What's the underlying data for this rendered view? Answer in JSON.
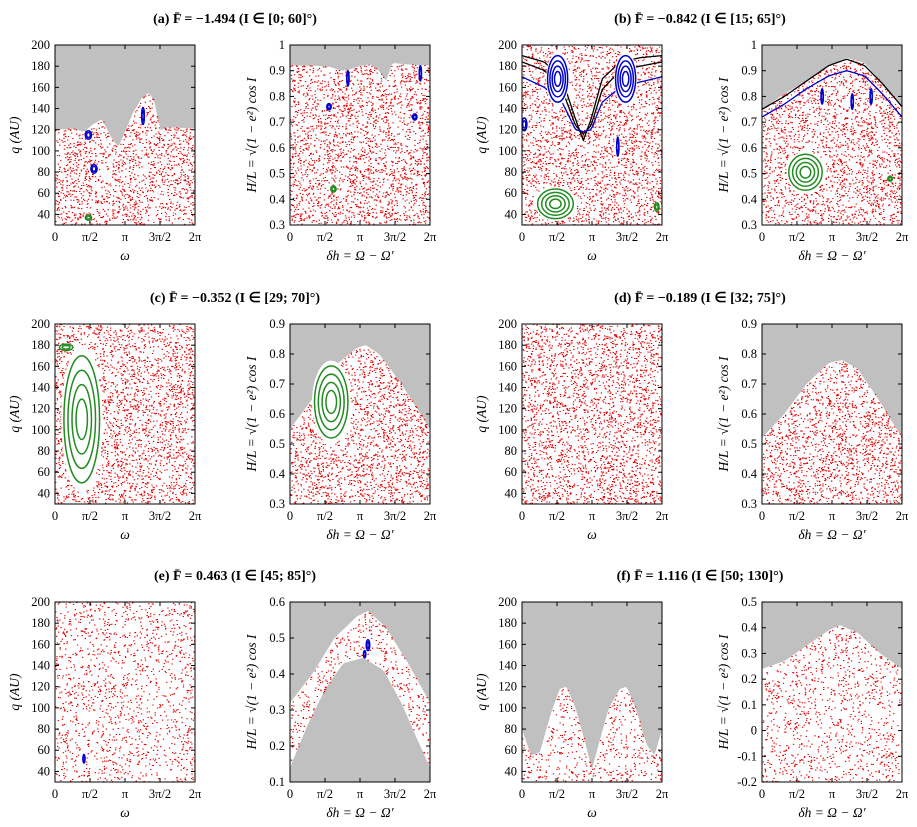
{
  "figure": {
    "xtick_labels": [
      "0",
      "π/2",
      "π",
      "3π/2",
      "2π"
    ],
    "xlabel_left": "ω",
    "xlabel_right": "δh = Ω − Ω′",
    "ylabel_left": "q (AU)",
    "ylabel_right": "H/L = √(1 − e²) cos I"
  },
  "chart_data": [
    {
      "panel": "a",
      "title": "(a)  F̄ = −1.494  (I ∈ [0; 60]°)",
      "left": {
        "type": "scatter",
        "xlim": [
          0,
          6.283
        ],
        "ylim": [
          30,
          200
        ],
        "yticks": [
          40,
          60,
          80,
          100,
          120,
          140,
          160,
          180,
          200
        ],
        "forbidden_region_color": "#c0c0c0",
        "boundary": [
          [
            0,
            120
          ],
          [
            0.8,
            121
          ],
          [
            1.3,
            118
          ],
          [
            1.7,
            125
          ],
          [
            2.1,
            130
          ],
          [
            2.4,
            118
          ],
          [
            2.6,
            110
          ],
          [
            2.85,
            104
          ],
          [
            3.1,
            116
          ],
          [
            3.5,
            136
          ],
          [
            3.9,
            150
          ],
          [
            4.2,
            155
          ],
          [
            4.45,
            148
          ],
          [
            4.6,
            132
          ],
          [
            4.75,
            119
          ],
          [
            4.9,
            122
          ],
          [
            5.4,
            122
          ],
          [
            6.283,
            121
          ]
        ],
        "islands": [
          {
            "color": "#0000cc",
            "x": 1.5,
            "y": 115,
            "rx": 0.14,
            "ry": 4
          },
          {
            "color": "#0000cc",
            "x": 1.75,
            "y": 83,
            "rx": 0.14,
            "ry": 4
          },
          {
            "color": "#0000cc",
            "x": 3.95,
            "y": 133,
            "rx": 0.06,
            "ry": 8
          },
          {
            "color": "#228b22",
            "x": 1.5,
            "y": 37,
            "rx": 0.14,
            "ry": 2.5
          }
        ]
      },
      "right": {
        "type": "scatter",
        "xlim": [
          0,
          6.283
        ],
        "ylim": [
          0.3,
          1.0
        ],
        "yticks": [
          0.3,
          0.4,
          0.5,
          0.6,
          0.7,
          0.8,
          0.9,
          1
        ],
        "boundary": [
          [
            0,
            0.92
          ],
          [
            1,
            0.92
          ],
          [
            1.8,
            0.915
          ],
          [
            2.3,
            0.9
          ],
          [
            2.7,
            0.905
          ],
          [
            3.2,
            0.92
          ],
          [
            3.6,
            0.925
          ],
          [
            4.0,
            0.9
          ],
          [
            4.3,
            0.86
          ],
          [
            4.6,
            0.93
          ],
          [
            5.2,
            0.925
          ],
          [
            6.283,
            0.92
          ]
        ],
        "islands": [
          {
            "color": "#0000cc",
            "x": 2.6,
            "y": 0.87,
            "rx": 0.05,
            "ry": 0.03
          },
          {
            "color": "#0000cc",
            "x": 5.85,
            "y": 0.89,
            "rx": 0.05,
            "ry": 0.03
          },
          {
            "color": "#0000cc",
            "x": 1.75,
            "y": 0.76,
            "rx": 0.1,
            "ry": 0.012
          },
          {
            "color": "#0000cc",
            "x": 5.6,
            "y": 0.72,
            "rx": 0.1,
            "ry": 0.012
          },
          {
            "color": "#228b22",
            "x": 1.95,
            "y": 0.44,
            "rx": 0.12,
            "ry": 0.012
          }
        ]
      }
    },
    {
      "panel": "b",
      "title": "(b)  F̄ = −0.842  (I ∈ [15; 65]°)",
      "left": {
        "type": "scatter",
        "xlim": [
          0,
          6.283
        ],
        "ylim": [
          30,
          200
        ],
        "yticks": [
          40,
          60,
          80,
          100,
          120,
          140,
          160,
          180,
          200
        ],
        "boundary": [
          [
            0,
            200
          ],
          [
            6.283,
            200
          ]
        ],
        "regular_curves": [
          {
            "color": "#000000",
            "points": [
              [
                0,
                190
              ],
              [
                1,
                184
              ],
              [
                1.8,
                168
              ],
              [
                2.4,
                130
              ],
              [
                2.75,
                110
              ],
              [
                3.1,
                130
              ],
              [
                3.6,
                168
              ],
              [
                4.4,
                184
              ],
              [
                5.3,
                188
              ],
              [
                6.283,
                190
              ]
            ]
          },
          {
            "color": "#000000",
            "points": [
              [
                0,
                184
              ],
              [
                1,
                176
              ],
              [
                1.8,
                158
              ],
              [
                2.4,
                124
              ],
              [
                2.75,
                116
              ],
              [
                3.1,
                124
              ],
              [
                3.6,
                158
              ],
              [
                4.4,
                176
              ],
              [
                5.3,
                180
              ],
              [
                6.283,
                184
              ]
            ]
          },
          {
            "color": "#0000cc",
            "points": [
              [
                0,
                170
              ],
              [
                1,
                160
              ],
              [
                1.8,
                146
              ],
              [
                2.4,
                120
              ],
              [
                2.75,
                118
              ],
              [
                3.1,
                120
              ],
              [
                3.6,
                146
              ],
              [
                4.4,
                160
              ],
              [
                5.3,
                165
              ],
              [
                6.283,
                170
              ]
            ]
          }
        ],
        "islands": [
          {
            "color": "#0000cc",
            "x": 1.6,
            "y": 168,
            "rx": 0.45,
            "ry": 22
          },
          {
            "color": "#0000cc",
            "x": 4.65,
            "y": 168,
            "rx": 0.45,
            "ry": 22
          },
          {
            "color": "#0000cc",
            "x": 4.3,
            "y": 104,
            "rx": 0.05,
            "ry": 9
          },
          {
            "color": "#0000cc",
            "x": 0.1,
            "y": 125,
            "rx": 0.12,
            "ry": 6
          },
          {
            "color": "#228b22",
            "x": 1.5,
            "y": 50,
            "rx": 0.8,
            "ry": 14
          },
          {
            "color": "#228b22",
            "x": 6.05,
            "y": 47,
            "rx": 0.1,
            "ry": 4
          }
        ]
      },
      "right": {
        "type": "scatter",
        "xlim": [
          0,
          6.283
        ],
        "ylim": [
          0.3,
          1.0
        ],
        "yticks": [
          0.3,
          0.4,
          0.5,
          0.6,
          0.7,
          0.8,
          0.9,
          1
        ],
        "boundary": [
          [
            0,
            0.75
          ],
          [
            1,
            0.81
          ],
          [
            2,
            0.86
          ],
          [
            3,
            0.92
          ],
          [
            3.8,
            0.95
          ],
          [
            4.6,
            0.93
          ],
          [
            5.4,
            0.85
          ],
          [
            6.283,
            0.76
          ]
        ],
        "regular_curves": [
          {
            "color": "#000000",
            "points": [
              [
                0,
                0.75
              ],
              [
                1,
                0.8
              ],
              [
                2,
                0.86
              ],
              [
                3,
                0.92
              ],
              [
                3.8,
                0.945
              ],
              [
                4.6,
                0.92
              ],
              [
                5.4,
                0.85
              ],
              [
                6.283,
                0.76
              ]
            ]
          },
          {
            "color": "#0000cc",
            "points": [
              [
                0,
                0.72
              ],
              [
                1,
                0.77
              ],
              [
                2,
                0.83
              ],
              [
                3,
                0.88
              ],
              [
                3.8,
                0.9
              ],
              [
                4.6,
                0.88
              ],
              [
                5.4,
                0.81
              ],
              [
                6.283,
                0.72
              ]
            ]
          }
        ],
        "islands": [
          {
            "color": "#0000cc",
            "x": 2.7,
            "y": 0.8,
            "rx": 0.05,
            "ry": 0.03
          },
          {
            "color": "#0000cc",
            "x": 4.05,
            "y": 0.78,
            "rx": 0.05,
            "ry": 0.03
          },
          {
            "color": "#0000cc",
            "x": 4.9,
            "y": 0.8,
            "rx": 0.05,
            "ry": 0.03
          },
          {
            "color": "#228b22",
            "x": 1.95,
            "y": 0.505,
            "rx": 0.75,
            "ry": 0.07
          },
          {
            "color": "#228b22",
            "x": 5.75,
            "y": 0.48,
            "rx": 0.1,
            "ry": 0.01
          }
        ]
      }
    },
    {
      "panel": "c",
      "title": "(c)  F̄ = −0.352  (I ∈ [29; 70]°)",
      "left": {
        "type": "scatter",
        "xlim": [
          0,
          6.283
        ],
        "ylim": [
          30,
          200
        ],
        "yticks": [
          40,
          60,
          80,
          100,
          120,
          140,
          160,
          180,
          200
        ],
        "boundary": [
          [
            0,
            200
          ],
          [
            6.283,
            200
          ]
        ],
        "islands": [
          {
            "color": "#228b22",
            "x": 1.2,
            "y": 110,
            "rx": 0.8,
            "ry": 60
          },
          {
            "color": "#228b22",
            "x": 0.5,
            "y": 178,
            "rx": 0.3,
            "ry": 3
          }
        ]
      },
      "right": {
        "type": "scatter",
        "xlim": [
          0,
          6.283
        ],
        "ylim": [
          0.3,
          0.9
        ],
        "yticks": [
          0.3,
          0.4,
          0.5,
          0.6,
          0.7,
          0.8,
          0.9
        ],
        "boundary": [
          [
            0,
            0.55
          ],
          [
            1,
            0.65
          ],
          [
            2,
            0.76
          ],
          [
            3,
            0.82
          ],
          [
            3.4,
            0.83
          ],
          [
            4,
            0.8
          ],
          [
            5,
            0.7
          ],
          [
            6.283,
            0.55
          ]
        ],
        "islands": [
          {
            "color": "#228b22",
            "x": 1.85,
            "y": 0.64,
            "rx": 0.75,
            "ry": 0.12
          }
        ]
      }
    },
    {
      "panel": "d",
      "title": "(d)  F̄ = −0.189  (I ∈ [32; 75]°)",
      "left": {
        "type": "scatter",
        "xlim": [
          0,
          6.283
        ],
        "ylim": [
          30,
          200
        ],
        "yticks": [
          40,
          60,
          80,
          100,
          120,
          140,
          160,
          180,
          200
        ],
        "boundary": [
          [
            0,
            200
          ],
          [
            6.283,
            200
          ]
        ],
        "islands": []
      },
      "right": {
        "type": "scatter",
        "xlim": [
          0,
          6.283
        ],
        "ylim": [
          0.3,
          0.9
        ],
        "yticks": [
          0.3,
          0.4,
          0.5,
          0.6,
          0.7,
          0.8,
          0.9
        ],
        "boundary": [
          [
            0,
            0.52
          ],
          [
            1,
            0.6
          ],
          [
            2,
            0.7
          ],
          [
            3,
            0.77
          ],
          [
            3.6,
            0.78
          ],
          [
            4.3,
            0.75
          ],
          [
            5.3,
            0.64
          ],
          [
            6.283,
            0.52
          ]
        ],
        "islands": []
      }
    },
    {
      "panel": "e",
      "title": "(e)  F̄ = 0.463  (I ∈ [45; 85]°)",
      "left": {
        "type": "scatter",
        "xlim": [
          0,
          6.283
        ],
        "ylim": [
          30,
          200
        ],
        "yticks": [
          40,
          60,
          80,
          100,
          120,
          140,
          160,
          180,
          200
        ],
        "boundary": [
          [
            0,
            200
          ],
          [
            6.283,
            200
          ]
        ],
        "islands": [
          {
            "color": "#0000cc",
            "x": 1.3,
            "y": 52,
            "rx": 0.04,
            "ry": 4
          }
        ]
      },
      "right": {
        "type": "scatter",
        "xlim": [
          0,
          6.283
        ],
        "ylim": [
          0.1,
          0.6
        ],
        "yticks": [
          0.1,
          0.2,
          0.3,
          0.4,
          0.5,
          0.6
        ],
        "boundary": [
          [
            0,
            0.32
          ],
          [
            1,
            0.4
          ],
          [
            2,
            0.5
          ],
          [
            3,
            0.56
          ],
          [
            3.5,
            0.575
          ],
          [
            4.3,
            0.53
          ],
          [
            5.3,
            0.43
          ],
          [
            6.283,
            0.32
          ]
        ],
        "lower_boundary": [
          [
            0,
            0.14
          ],
          [
            0.8,
            0.26
          ],
          [
            1.6,
            0.36
          ],
          [
            2.4,
            0.43
          ],
          [
            3.3,
            0.445
          ],
          [
            4.2,
            0.41
          ],
          [
            5,
            0.32
          ],
          [
            5.7,
            0.22
          ],
          [
            6.283,
            0.14
          ]
        ],
        "islands": [
          {
            "color": "#0000cc",
            "x": 3.5,
            "y": 0.48,
            "rx": 0.08,
            "ry": 0.015
          },
          {
            "color": "#0000cc",
            "x": 3.35,
            "y": 0.455,
            "rx": 0.05,
            "ry": 0.01
          }
        ]
      }
    },
    {
      "panel": "f",
      "title": "(f)  F̄ = 1.116  (I ∈ [50; 130]°)",
      "left": {
        "type": "scatter",
        "xlim": [
          0,
          6.283
        ],
        "ylim": [
          30,
          200
        ],
        "yticks": [
          40,
          60,
          80,
          100,
          120,
          140,
          160,
          180,
          200
        ],
        "boundary": [
          [
            0,
            80
          ],
          [
            0.4,
            55
          ],
          [
            0.8,
            58
          ],
          [
            1.3,
            95
          ],
          [
            1.7,
            118
          ],
          [
            2.0,
            120
          ],
          [
            2.4,
            100
          ],
          [
            2.8,
            70
          ],
          [
            3.14,
            42
          ],
          [
            3.5,
            70
          ],
          [
            3.9,
            100
          ],
          [
            4.4,
            118
          ],
          [
            4.7,
            120
          ],
          [
            5.1,
            100
          ],
          [
            5.6,
            65
          ],
          [
            5.95,
            55
          ],
          [
            6.283,
            80
          ]
        ],
        "islands": []
      },
      "right": {
        "type": "scatter",
        "xlim": [
          0,
          6.283
        ],
        "ylim": [
          -0.2,
          0.5
        ],
        "yticks": [
          -0.2,
          -0.1,
          0,
          0.1,
          0.2,
          0.3,
          0.4,
          0.5
        ],
        "boundary": [
          [
            0,
            0.24
          ],
          [
            1,
            0.27
          ],
          [
            2,
            0.33
          ],
          [
            3,
            0.39
          ],
          [
            3.5,
            0.41
          ],
          [
            4.3,
            0.38
          ],
          [
            5.3,
            0.3
          ],
          [
            6.283,
            0.24
          ]
        ],
        "islands": []
      }
    }
  ],
  "colors": {
    "chaotic_points": "#e00000",
    "forbidden_region": "#c0c0c0",
    "regular_blue": "#0000cc",
    "regular_green": "#228b22",
    "regular_black": "#000000"
  }
}
